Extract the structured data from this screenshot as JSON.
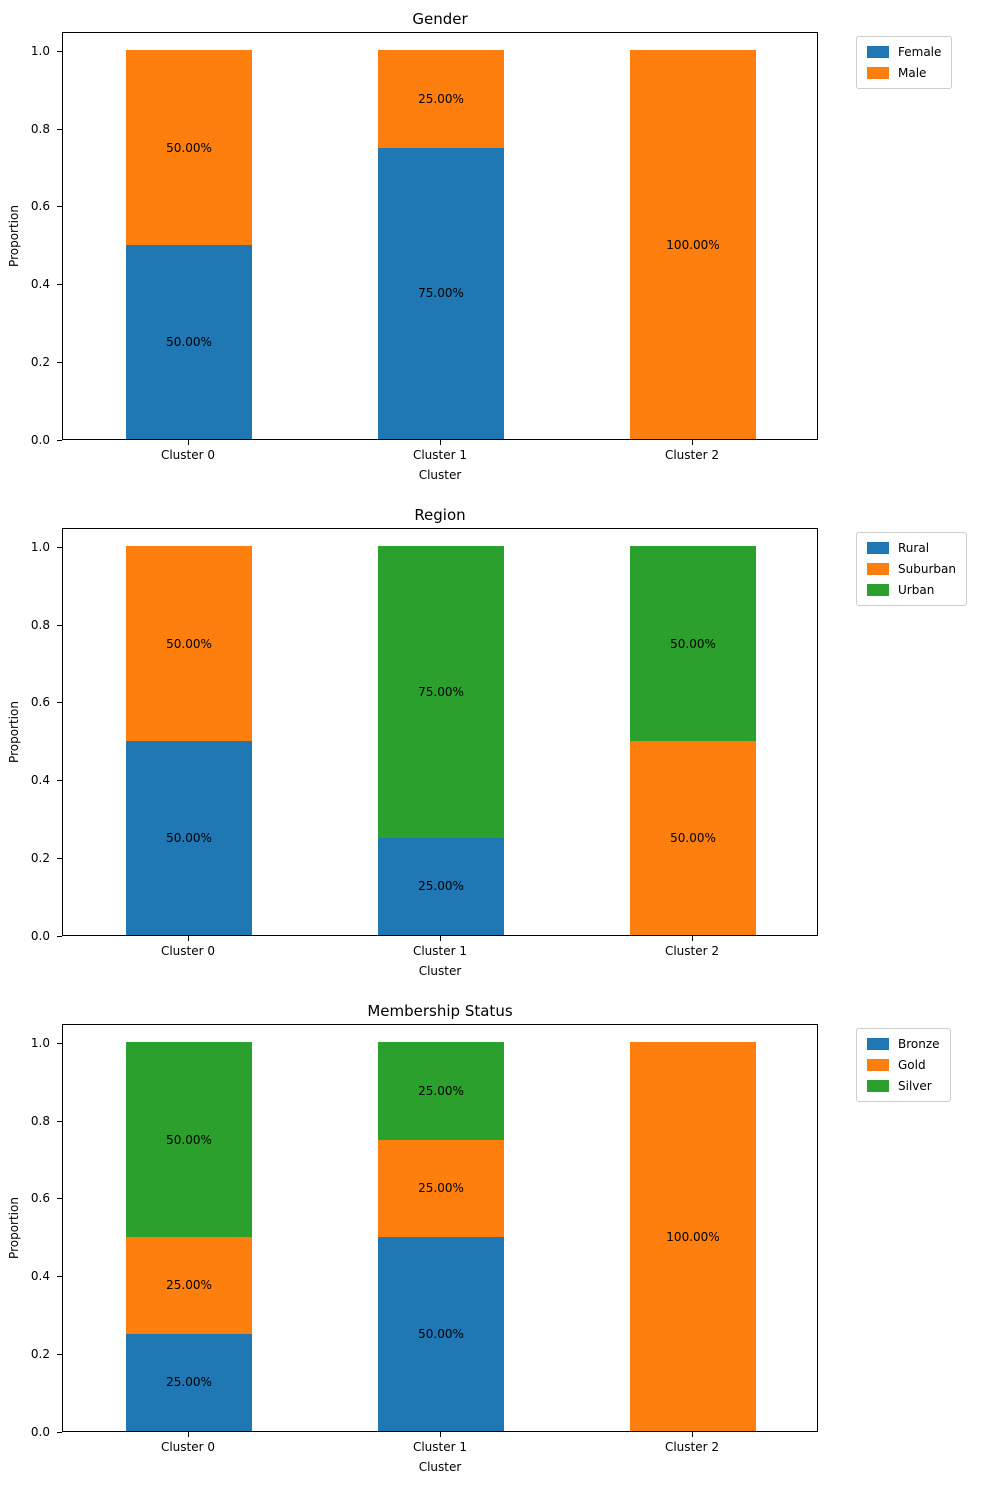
{
  "figure": {
    "background": "#ffffff"
  },
  "chart_data": [
    {
      "type": "bar",
      "stacked": true,
      "title": "Gender",
      "xlabel": "Cluster",
      "ylabel": "Proportion",
      "categories": [
        "Cluster 0",
        "Cluster 1",
        "Cluster 2"
      ],
      "ytick_labels": [
        "0.0",
        "0.2",
        "0.4",
        "0.6",
        "0.8",
        "1.0"
      ],
      "ytick_values": [
        0,
        0.2,
        0.4,
        0.6,
        0.8,
        1.0
      ],
      "ylim": [
        0,
        1.05
      ],
      "grid": false,
      "legend_position": "upper-right-outside",
      "series": [
        {
          "name": "Female",
          "color": "#1f77b4",
          "values": [
            0.5,
            0.75,
            0.0
          ],
          "labels": [
            "50.00%",
            "75.00%",
            null
          ]
        },
        {
          "name": "Male",
          "color": "#ff7f0e",
          "values": [
            0.5,
            0.25,
            1.0
          ],
          "labels": [
            "50.00%",
            "25.00%",
            "100.00%"
          ]
        }
      ]
    },
    {
      "type": "bar",
      "stacked": true,
      "title": "Region",
      "xlabel": "Cluster",
      "ylabel": "Proportion",
      "categories": [
        "Cluster 0",
        "Cluster 1",
        "Cluster 2"
      ],
      "ytick_labels": [
        "0.0",
        "0.2",
        "0.4",
        "0.6",
        "0.8",
        "1.0"
      ],
      "ytick_values": [
        0,
        0.2,
        0.4,
        0.6,
        0.8,
        1.0
      ],
      "ylim": [
        0,
        1.05
      ],
      "grid": false,
      "legend_position": "upper-right-outside",
      "series": [
        {
          "name": "Rural",
          "color": "#1f77b4",
          "values": [
            0.5,
            0.25,
            0.0
          ],
          "labels": [
            "50.00%",
            "25.00%",
            null
          ]
        },
        {
          "name": "Suburban",
          "color": "#ff7f0e",
          "values": [
            0.5,
            0.0,
            0.5
          ],
          "labels": [
            "50.00%",
            null,
            "50.00%"
          ]
        },
        {
          "name": "Urban",
          "color": "#2ca02c",
          "values": [
            0.0,
            0.75,
            0.5
          ],
          "labels": [
            null,
            "75.00%",
            "50.00%"
          ]
        }
      ]
    },
    {
      "type": "bar",
      "stacked": true,
      "title": "Membership Status",
      "xlabel": "Cluster",
      "ylabel": "Proportion",
      "categories": [
        "Cluster 0",
        "Cluster 1",
        "Cluster 2"
      ],
      "ytick_labels": [
        "0.0",
        "0.2",
        "0.4",
        "0.6",
        "0.8",
        "1.0"
      ],
      "ytick_values": [
        0,
        0.2,
        0.4,
        0.6,
        0.8,
        1.0
      ],
      "ylim": [
        0,
        1.05
      ],
      "grid": false,
      "legend_position": "upper-right-outside",
      "series": [
        {
          "name": "Bronze",
          "color": "#1f77b4",
          "values": [
            0.25,
            0.5,
            0.0
          ],
          "labels": [
            "25.00%",
            "50.00%",
            null
          ]
        },
        {
          "name": "Gold",
          "color": "#ff7f0e",
          "values": [
            0.25,
            0.25,
            1.0
          ],
          "labels": [
            "25.00%",
            "25.00%",
            "100.00%"
          ]
        },
        {
          "name": "Silver",
          "color": "#2ca02c",
          "values": [
            0.5,
            0.25,
            0.0
          ],
          "labels": [
            "50.00%",
            "25.00%",
            null
          ]
        }
      ]
    }
  ]
}
